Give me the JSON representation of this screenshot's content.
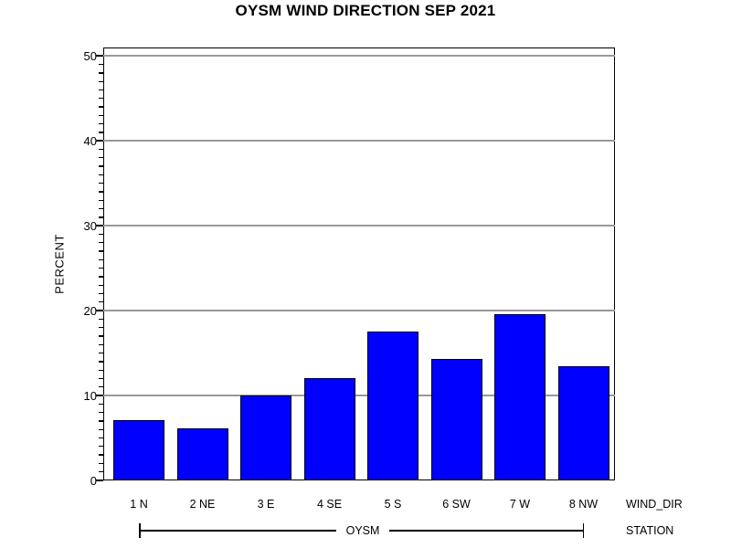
{
  "title": "OYSM WIND DIRECTION SEP 2021",
  "chart_data": {
    "type": "bar",
    "title": "OYSM WIND DIRECTION SEP 2021",
    "categories": [
      "1 N",
      "2 NE",
      "3 E",
      "4 SE",
      "5 S",
      "6 SW",
      "7 W",
      "8 NW"
    ],
    "values": [
      7.1,
      6.1,
      10.0,
      12.1,
      17.5,
      14.3,
      19.6,
      13.4
    ],
    "xlabel": "WIND_DIR",
    "ylabel": "PERCENT",
    "ylim": [
      0,
      51
    ],
    "yticks": [
      0,
      10,
      20,
      30,
      40,
      50
    ],
    "minor_tick_interval": 1,
    "grid": true,
    "legend": "none",
    "group_axis": {
      "label": "STATION",
      "group": "OYSM"
    },
    "colors": {
      "bar_fill": "#0000FF",
      "bar_border": "#000000",
      "gridline": "#999999",
      "axis": "#000000",
      "background": "#FFFFFF"
    }
  }
}
